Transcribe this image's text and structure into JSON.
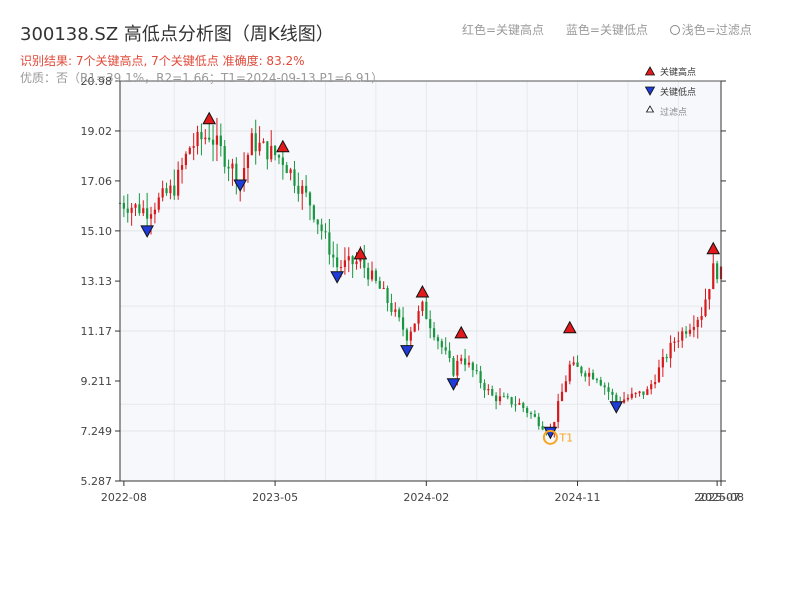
{
  "title": "300138.SZ 高低点分析图（周K线图）",
  "legend_top": {
    "red": "红色=关键高点",
    "blue": "蓝色=关键低点",
    "light": "浅色=过滤点"
  },
  "result_text": "识别结果: 7个关键高点, 7个关键低点  准确度: 83.2%",
  "quality_text": "优质：否（R1=39.1%，R2=1.66；T1=2024-09-13 P1=6.91）",
  "chart_data": {
    "type": "candlestick",
    "y_range": [
      5.287,
      20.98
    ],
    "y_ticks": [
      "5.287",
      "7.249",
      "9.211",
      "11.17",
      "13.13",
      "15.10",
      "17.06",
      "19.02",
      "20.98"
    ],
    "y_tick_values": [
      5.287,
      7.249,
      9.211,
      11.17,
      13.13,
      15.1,
      17.06,
      19.02,
      20.98
    ],
    "x_range": [
      "2022-07-29",
      "2025-07-18"
    ],
    "x_ticks": [
      {
        "date": "2022-08-05",
        "label": "2022-08"
      },
      {
        "date": "2023-05-05",
        "label": "2023-05"
      },
      {
        "date": "2024-02-02",
        "label": "2024-02"
      },
      {
        "date": "2024-11-01",
        "label": "2024-11"
      },
      {
        "date": "2025-07-11",
        "label": "2025-07"
      },
      {
        "date": "2025-07-18",
        "label": "2025-08"
      }
    ],
    "up_color": "#d7191c",
    "down_color": "#1a9641",
    "key_points": [
      {
        "type": "high",
        "date": "2023-01-06",
        "value": 19.5
      },
      {
        "type": "high",
        "date": "2023-05-19",
        "value": 18.4
      },
      {
        "type": "high",
        "date": "2023-10-06",
        "value": 14.2
      },
      {
        "type": "high",
        "date": "2024-01-26",
        "value": 12.7
      },
      {
        "type": "high",
        "date": "2024-04-05",
        "value": 11.1
      },
      {
        "type": "high",
        "date": "2024-10-18",
        "value": 11.3
      },
      {
        "type": "high",
        "date": "2025-07-04",
        "value": 14.4
      },
      {
        "type": "low",
        "date": "2022-09-16",
        "value": 15.1
      },
      {
        "type": "low",
        "date": "2023-03-03",
        "value": 16.9
      },
      {
        "type": "low",
        "date": "2023-08-25",
        "value": 13.3
      },
      {
        "type": "low",
        "date": "2023-12-29",
        "value": 10.4
      },
      {
        "type": "low",
        "date": "2024-03-22",
        "value": 9.1
      },
      {
        "type": "low",
        "date": "2024-09-13",
        "value": 7.2
      },
      {
        "type": "low",
        "date": "2025-01-10",
        "value": 8.2
      }
    ],
    "t1_marker": {
      "label": "T1",
      "date": "2024-09-13",
      "value": 7.0
    },
    "legend": {
      "items": [
        "关键高点",
        "关键低点",
        "过滤点"
      ],
      "placement": "top-right"
    },
    "anchors": [
      {
        "date": "2022-07-29",
        "value": 16.2
      },
      {
        "date": "2022-09-16",
        "value": 15.9
      },
      {
        "date": "2022-11-04",
        "value": 16.8
      },
      {
        "date": "2022-12-02",
        "value": 18.4
      },
      {
        "date": "2023-01-06",
        "value": 18.9
      },
      {
        "date": "2023-03-03",
        "value": 17.1
      },
      {
        "date": "2023-03-24",
        "value": 18.6
      },
      {
        "date": "2023-05-19",
        "value": 17.9
      },
      {
        "date": "2023-07-07",
        "value": 16.2
      },
      {
        "date": "2023-08-25",
        "value": 13.7
      },
      {
        "date": "2023-10-06",
        "value": 13.9
      },
      {
        "date": "2023-11-17",
        "value": 12.6
      },
      {
        "date": "2023-12-29",
        "value": 11.0
      },
      {
        "date": "2024-01-26",
        "value": 12.1
      },
      {
        "date": "2024-03-22",
        "value": 9.6
      },
      {
        "date": "2024-04-05",
        "value": 10.2
      },
      {
        "date": "2024-05-31",
        "value": 8.6
      },
      {
        "date": "2024-07-19",
        "value": 8.3
      },
      {
        "date": "2024-09-13",
        "value": 7.2
      },
      {
        "date": "2024-10-18",
        "value": 9.8
      },
      {
        "date": "2024-12-06",
        "value": 9.4
      },
      {
        "date": "2025-01-10",
        "value": 8.4
      },
      {
        "date": "2025-03-07",
        "value": 8.8
      },
      {
        "date": "2025-04-25",
        "value": 10.8
      },
      {
        "date": "2025-06-13",
        "value": 11.9
      },
      {
        "date": "2025-07-04",
        "value": 13.6
      },
      {
        "date": "2025-07-18",
        "value": 13.4
      }
    ]
  }
}
